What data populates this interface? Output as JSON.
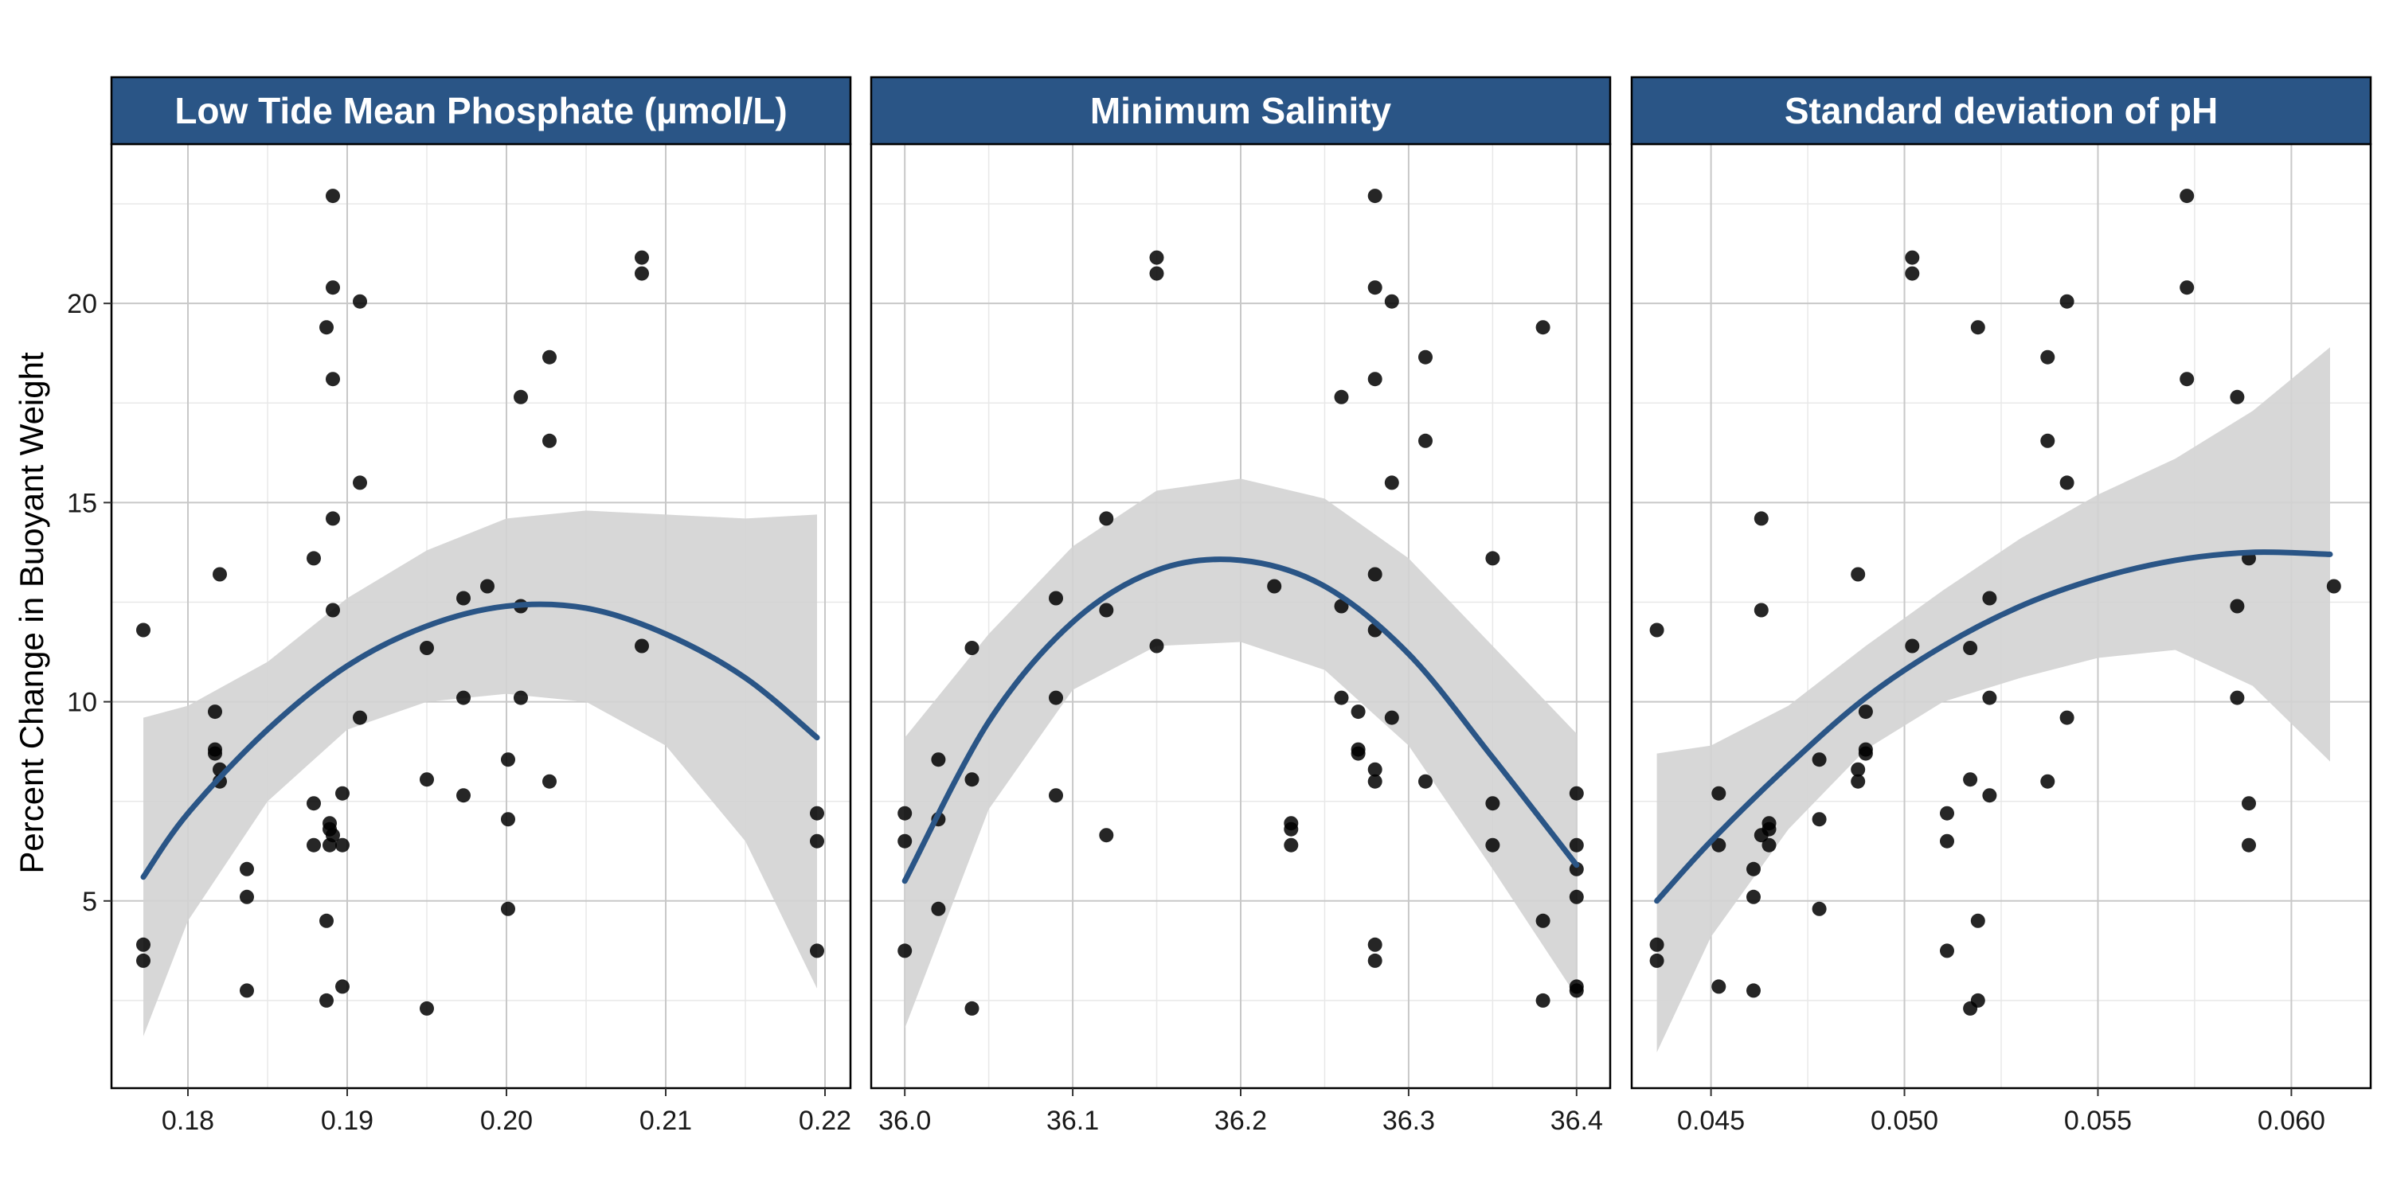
{
  "colors": {
    "strip": "#2a5586",
    "line": "#2a5586",
    "band": "#d3d3d3",
    "point": "#000000",
    "grid_major": "#c8c8c8",
    "grid_minor": "#e8e8e8",
    "panel_border": "#000000"
  },
  "chart_data": {
    "type": "scatter",
    "ylabel": "Percent Change in Buoyant Weight",
    "ylim": [
      0.3,
      24
    ],
    "yticks": [
      5,
      10,
      15,
      20
    ],
    "grid": true,
    "panels": [
      {
        "title": "Low Tide Mean Phosphate (µmol/L)",
        "xlim": [
          0.1752,
          0.2216
        ],
        "xticks": [
          0.18,
          0.19,
          0.2,
          0.21,
          0.22
        ],
        "xtick_labels": [
          "0.18",
          "0.19",
          "0.20",
          "0.21",
          "0.22"
        ],
        "points": [
          [
            0.1772,
            11.8
          ],
          [
            0.1772,
            3.9
          ],
          [
            0.1772,
            3.5
          ],
          [
            0.1817,
            9.75
          ],
          [
            0.1817,
            8.8
          ],
          [
            0.1817,
            8.7
          ],
          [
            0.182,
            8.3
          ],
          [
            0.182,
            8.0
          ],
          [
            0.182,
            13.2
          ],
          [
            0.1837,
            5.8
          ],
          [
            0.1837,
            5.1
          ],
          [
            0.1837,
            2.75
          ],
          [
            0.1879,
            13.6
          ],
          [
            0.1879,
            7.45
          ],
          [
            0.1879,
            6.4
          ],
          [
            0.1887,
            19.4
          ],
          [
            0.1887,
            4.5
          ],
          [
            0.1887,
            2.5
          ],
          [
            0.1889,
            6.95
          ],
          [
            0.1889,
            6.8
          ],
          [
            0.1889,
            6.4
          ],
          [
            0.1891,
            22.7
          ],
          [
            0.1891,
            20.4
          ],
          [
            0.1891,
            18.1
          ],
          [
            0.1891,
            14.6
          ],
          [
            0.1891,
            12.3
          ],
          [
            0.1891,
            6.65
          ],
          [
            0.1897,
            7.7
          ],
          [
            0.1897,
            6.4
          ],
          [
            0.1897,
            2.85
          ],
          [
            0.1908,
            20.05
          ],
          [
            0.1908,
            15.5
          ],
          [
            0.1908,
            9.6
          ],
          [
            0.195,
            11.35
          ],
          [
            0.195,
            8.05
          ],
          [
            0.195,
            2.3
          ],
          [
            0.1973,
            12.6
          ],
          [
            0.1973,
            10.1
          ],
          [
            0.1973,
            7.65
          ],
          [
            0.1988,
            12.9
          ],
          [
            0.2001,
            8.55
          ],
          [
            0.2001,
            7.05
          ],
          [
            0.2001,
            4.8
          ],
          [
            0.2009,
            17.65
          ],
          [
            0.2009,
            12.4
          ],
          [
            0.2009,
            10.1
          ],
          [
            0.2027,
            18.65
          ],
          [
            0.2027,
            16.55
          ],
          [
            0.2027,
            8.0
          ],
          [
            0.2085,
            21.15
          ],
          [
            0.2085,
            20.75
          ],
          [
            0.2085,
            11.4
          ],
          [
            0.2195,
            7.2
          ],
          [
            0.2195,
            6.5
          ],
          [
            0.2195,
            3.75
          ]
        ],
        "fit": {
          "x": [
            0.1772,
            0.18,
            0.185,
            0.19,
            0.195,
            0.2,
            0.205,
            0.21,
            0.215,
            0.2195
          ],
          "y": [
            5.6,
            7.2,
            9.3,
            10.9,
            11.9,
            12.4,
            12.35,
            11.7,
            10.6,
            9.1
          ],
          "lower": [
            1.6,
            4.5,
            7.5,
            9.3,
            10.0,
            10.2,
            10.0,
            8.9,
            6.5,
            2.8
          ],
          "upper": [
            9.6,
            9.9,
            11.0,
            12.6,
            13.8,
            14.6,
            14.8,
            14.7,
            14.6,
            14.7
          ]
        }
      },
      {
        "title": "Minimum Salinity",
        "xlim": [
          35.98,
          36.42
        ],
        "xticks": [
          36.0,
          36.1,
          36.2,
          36.3,
          36.4
        ],
        "xtick_labels": [
          "36.0",
          "36.1",
          "36.2",
          "36.3",
          "36.4"
        ],
        "points": [
          [
            36.0,
            7.2
          ],
          [
            36.0,
            6.5
          ],
          [
            36.0,
            3.75
          ],
          [
            36.02,
            8.55
          ],
          [
            36.02,
            7.05
          ],
          [
            36.02,
            4.8
          ],
          [
            36.04,
            11.35
          ],
          [
            36.04,
            8.05
          ],
          [
            36.04,
            2.3
          ],
          [
            36.09,
            12.6
          ],
          [
            36.09,
            10.1
          ],
          [
            36.09,
            7.65
          ],
          [
            36.12,
            14.6
          ],
          [
            36.12,
            12.3
          ],
          [
            36.12,
            6.65
          ],
          [
            36.15,
            21.15
          ],
          [
            36.15,
            20.75
          ],
          [
            36.15,
            11.4
          ],
          [
            36.22,
            12.9
          ],
          [
            36.23,
            6.95
          ],
          [
            36.23,
            6.8
          ],
          [
            36.23,
            6.4
          ],
          [
            36.26,
            17.65
          ],
          [
            36.26,
            12.4
          ],
          [
            36.26,
            10.1
          ],
          [
            36.27,
            9.75
          ],
          [
            36.27,
            8.8
          ],
          [
            36.27,
            8.7
          ],
          [
            36.28,
            22.7
          ],
          [
            36.28,
            20.4
          ],
          [
            36.28,
            18.1
          ],
          [
            36.28,
            13.2
          ],
          [
            36.28,
            11.8
          ],
          [
            36.28,
            8.3
          ],
          [
            36.28,
            8.0
          ],
          [
            36.28,
            3.9
          ],
          [
            36.28,
            3.5
          ],
          [
            36.29,
            20.05
          ],
          [
            36.29,
            15.5
          ],
          [
            36.29,
            9.6
          ],
          [
            36.31,
            18.65
          ],
          [
            36.31,
            16.55
          ],
          [
            36.31,
            8.0
          ],
          [
            36.35,
            13.6
          ],
          [
            36.35,
            7.45
          ],
          [
            36.35,
            6.4
          ],
          [
            36.38,
            19.4
          ],
          [
            36.38,
            4.5
          ],
          [
            36.38,
            2.5
          ],
          [
            36.4,
            7.7
          ],
          [
            36.4,
            6.4
          ],
          [
            36.4,
            5.8
          ],
          [
            36.4,
            5.1
          ],
          [
            36.4,
            2.85
          ],
          [
            36.4,
            2.75
          ]
        ],
        "fit": {
          "x": [
            36.0,
            36.05,
            36.1,
            36.15,
            36.2,
            36.25,
            36.3,
            36.35,
            36.4
          ],
          "y": [
            5.5,
            9.5,
            12.0,
            13.3,
            13.55,
            12.9,
            11.2,
            8.6,
            5.9
          ],
          "lower": [
            1.8,
            7.3,
            10.3,
            11.4,
            11.5,
            10.8,
            8.9,
            5.8,
            2.6
          ],
          "upper": [
            9.1,
            11.7,
            13.9,
            15.3,
            15.6,
            15.1,
            13.6,
            11.4,
            9.2
          ]
        }
      },
      {
        "title": "Standard deviation of pH",
        "xlim": [
          0.04295,
          0.06205
        ],
        "xticks": [
          0.045,
          0.05,
          0.055,
          0.06
        ],
        "xtick_labels": [
          "0.045",
          "0.050",
          "0.055",
          "0.060"
        ],
        "points": [
          [
            0.0436,
            11.8
          ],
          [
            0.0436,
            3.9
          ],
          [
            0.0436,
            3.5
          ],
          [
            0.0452,
            7.7
          ],
          [
            0.0452,
            6.4
          ],
          [
            0.0452,
            2.85
          ],
          [
            0.0461,
            5.8
          ],
          [
            0.0461,
            5.1
          ],
          [
            0.0461,
            2.75
          ],
          [
            0.0463,
            14.6
          ],
          [
            0.0463,
            12.3
          ],
          [
            0.0463,
            6.65
          ],
          [
            0.0465,
            6.95
          ],
          [
            0.0465,
            6.8
          ],
          [
            0.0465,
            6.4
          ],
          [
            0.0478,
            8.55
          ],
          [
            0.0478,
            7.05
          ],
          [
            0.0478,
            4.8
          ],
          [
            0.0488,
            13.2
          ],
          [
            0.0488,
            8.3
          ],
          [
            0.0488,
            8.0
          ],
          [
            0.049,
            9.75
          ],
          [
            0.049,
            8.8
          ],
          [
            0.049,
            8.7
          ],
          [
            0.0502,
            21.15
          ],
          [
            0.0502,
            20.75
          ],
          [
            0.0502,
            11.4
          ],
          [
            0.0511,
            7.2
          ],
          [
            0.0511,
            6.5
          ],
          [
            0.0511,
            3.75
          ],
          [
            0.0517,
            11.35
          ],
          [
            0.0517,
            8.05
          ],
          [
            0.0517,
            2.3
          ],
          [
            0.0519,
            19.4
          ],
          [
            0.0519,
            4.5
          ],
          [
            0.0519,
            2.5
          ],
          [
            0.0522,
            12.6
          ],
          [
            0.0522,
            10.1
          ],
          [
            0.0522,
            7.65
          ],
          [
            0.0537,
            18.65
          ],
          [
            0.0537,
            16.55
          ],
          [
            0.0537,
            8.0
          ],
          [
            0.0542,
            20.05
          ],
          [
            0.0542,
            15.5
          ],
          [
            0.0542,
            9.6
          ],
          [
            0.0573,
            22.7
          ],
          [
            0.0573,
            20.4
          ],
          [
            0.0573,
            18.1
          ],
          [
            0.0586,
            17.65
          ],
          [
            0.0586,
            12.4
          ],
          [
            0.0586,
            10.1
          ],
          [
            0.0589,
            13.6
          ],
          [
            0.0589,
            7.45
          ],
          [
            0.0589,
            6.4
          ],
          [
            0.0611,
            12.9
          ]
        ],
        "fit": {
          "x": [
            0.0436,
            0.045,
            0.047,
            0.049,
            0.051,
            0.053,
            0.055,
            0.057,
            0.059,
            0.061
          ],
          "y": [
            5.0,
            6.5,
            8.4,
            10.1,
            11.4,
            12.4,
            13.1,
            13.55,
            13.75,
            13.7
          ],
          "lower": [
            1.2,
            4.1,
            6.8,
            8.8,
            10.0,
            10.6,
            11.1,
            11.3,
            10.4,
            8.5
          ],
          "upper": [
            8.7,
            8.9,
            9.9,
            11.4,
            12.8,
            14.1,
            15.2,
            16.1,
            17.3,
            18.9
          ]
        }
      }
    ]
  }
}
